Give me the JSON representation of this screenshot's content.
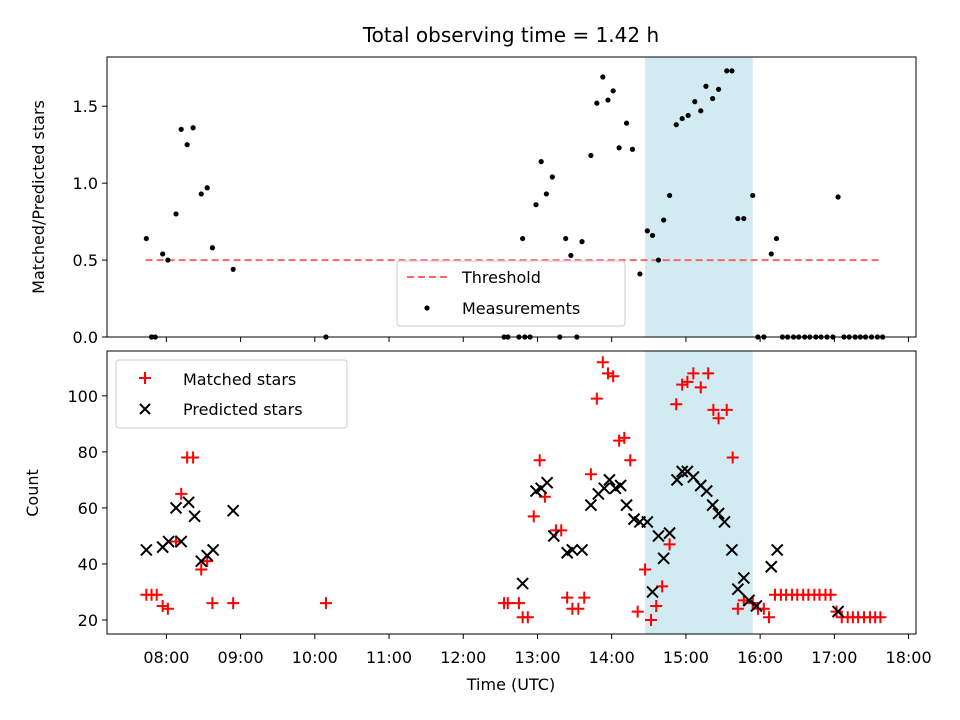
{
  "figure": {
    "title": "Total observing time = 1.42 h",
    "xlabel": "Time (UTC)",
    "x_ticks": [
      {
        "label": "08:00",
        "hour": 8
      },
      {
        "label": "09:00",
        "hour": 9
      },
      {
        "label": "10:00",
        "hour": 10
      },
      {
        "label": "11:00",
        "hour": 11
      },
      {
        "label": "12:00",
        "hour": 12
      },
      {
        "label": "13:00",
        "hour": 13
      },
      {
        "label": "14:00",
        "hour": 14
      },
      {
        "label": "15:00",
        "hour": 15
      },
      {
        "label": "16:00",
        "hour": 16
      },
      {
        "label": "17:00",
        "hour": 17
      },
      {
        "label": "18:00",
        "hour": 18
      }
    ]
  },
  "chart_data": [
    {
      "type": "scatter",
      "panel": "top",
      "ylabel": "Matched/Predicted stars",
      "xlim": [
        7.2,
        18.1
      ],
      "ylim": [
        0,
        1.82
      ],
      "y_ticks": [
        "0.0",
        "0.5",
        "1.0",
        "1.5"
      ],
      "y_tick_values": [
        0,
        0.5,
        1.0,
        1.5
      ],
      "highlight_span": {
        "x": [
          14.45,
          15.9
        ],
        "color": "#add8e6"
      },
      "legend": {
        "position": "lower center",
        "entries": [
          "Threshold",
          "Measurements"
        ]
      },
      "threshold": {
        "name": "Threshold",
        "y": 0.5,
        "x": [
          7.72,
          17.65
        ],
        "color": "#ff6666",
        "style": "dashed"
      },
      "series": [
        {
          "name": "Measurements",
          "color": "#000000",
          "marker": "dot",
          "points": [
            [
              7.73,
              0.64
            ],
            [
              7.8,
              0
            ],
            [
              7.85,
              0
            ],
            [
              7.95,
              0.54
            ],
            [
              8.02,
              0.5
            ],
            [
              8.13,
              0.8
            ],
            [
              8.2,
              1.35
            ],
            [
              8.28,
              1.25
            ],
            [
              8.36,
              1.36
            ],
            [
              8.47,
              0.93
            ],
            [
              8.55,
              0.97
            ],
            [
              8.62,
              0.58
            ],
            [
              8.9,
              0.44
            ],
            [
              10.15,
              0
            ],
            [
              12.55,
              0
            ],
            [
              12.6,
              0
            ],
            [
              12.75,
              0
            ],
            [
              12.8,
              0.64
            ],
            [
              12.83,
              0
            ],
            [
              12.9,
              0
            ],
            [
              12.98,
              0.86
            ],
            [
              13.05,
              1.14
            ],
            [
              13.12,
              0.93
            ],
            [
              13.2,
              1.04
            ],
            [
              13.3,
              0
            ],
            [
              13.38,
              0.64
            ],
            [
              13.45,
              0.53
            ],
            [
              13.53,
              0
            ],
            [
              13.6,
              0.62
            ],
            [
              13.72,
              1.18
            ],
            [
              13.8,
              1.52
            ],
            [
              13.88,
              1.69
            ],
            [
              13.95,
              1.54
            ],
            [
              14.02,
              1.6
            ],
            [
              14.1,
              1.23
            ],
            [
              14.2,
              1.39
            ],
            [
              14.28,
              1.22
            ],
            [
              14.38,
              0.41
            ],
            [
              14.48,
              0.69
            ],
            [
              14.55,
              0.66
            ],
            [
              14.63,
              0.5
            ],
            [
              14.7,
              0.76
            ],
            [
              14.78,
              0.92
            ],
            [
              14.87,
              1.38
            ],
            [
              14.95,
              1.42
            ],
            [
              15.03,
              1.44
            ],
            [
              15.12,
              1.53
            ],
            [
              15.2,
              1.47
            ],
            [
              15.27,
              1.63
            ],
            [
              15.36,
              1.55
            ],
            [
              15.44,
              1.61
            ],
            [
              15.55,
              1.73
            ],
            [
              15.62,
              1.73
            ],
            [
              15.7,
              0.77
            ],
            [
              15.78,
              0.77
            ],
            [
              15.9,
              0.92
            ],
            [
              15.97,
              0
            ],
            [
              16.05,
              0
            ],
            [
              16.15,
              0.54
            ],
            [
              16.22,
              0.64
            ],
            [
              16.3,
              0
            ],
            [
              16.37,
              0
            ],
            [
              16.45,
              0
            ],
            [
              16.52,
              0
            ],
            [
              16.6,
              0
            ],
            [
              16.67,
              0
            ],
            [
              16.75,
              0
            ],
            [
              16.82,
              0
            ],
            [
              16.9,
              0
            ],
            [
              16.98,
              0
            ],
            [
              17.05,
              0.91
            ],
            [
              17.13,
              0
            ],
            [
              17.2,
              0
            ],
            [
              17.28,
              0
            ],
            [
              17.35,
              0
            ],
            [
              17.42,
              0
            ],
            [
              17.5,
              0
            ],
            [
              17.58,
              0
            ],
            [
              17.65,
              0
            ]
          ]
        }
      ]
    },
    {
      "type": "scatter",
      "panel": "bottom",
      "ylabel": "Count",
      "xlabel": "Time (UTC)",
      "xlim": [
        7.2,
        18.1
      ],
      "ylim": [
        15,
        116
      ],
      "y_ticks": [
        "20",
        "40",
        "60",
        "80",
        "100"
      ],
      "y_tick_values": [
        20,
        40,
        60,
        80,
        100
      ],
      "highlight_span": {
        "x": [
          14.45,
          15.9
        ],
        "color": "#add8e6"
      },
      "legend": {
        "position": "upper left",
        "entries": [
          "Matched stars",
          "Predicted stars"
        ]
      },
      "series": [
        {
          "name": "Matched stars",
          "color": "#ff0000",
          "marker": "plus",
          "points": [
            [
              7.73,
              29
            ],
            [
              7.8,
              29
            ],
            [
              7.87,
              29
            ],
            [
              7.95,
              25
            ],
            [
              8.02,
              24
            ],
            [
              8.13,
              48
            ],
            [
              8.2,
              65
            ],
            [
              8.28,
              78
            ],
            [
              8.36,
              78
            ],
            [
              8.47,
              38
            ],
            [
              8.55,
              41
            ],
            [
              8.62,
              26
            ],
            [
              8.9,
              26
            ],
            [
              10.15,
              26
            ],
            [
              12.55,
              26
            ],
            [
              12.6,
              26
            ],
            [
              12.75,
              26
            ],
            [
              12.8,
              21
            ],
            [
              12.87,
              21
            ],
            [
              12.95,
              57
            ],
            [
              13.03,
              77
            ],
            [
              13.1,
              64
            ],
            [
              13.25,
              52
            ],
            [
              13.32,
              52
            ],
            [
              13.4,
              28
            ],
            [
              13.47,
              24
            ],
            [
              13.55,
              24
            ],
            [
              13.63,
              28
            ],
            [
              13.72,
              72
            ],
            [
              13.8,
              99
            ],
            [
              13.88,
              112
            ],
            [
              13.95,
              108
            ],
            [
              14.02,
              107
            ],
            [
              14.1,
              84
            ],
            [
              14.17,
              85
            ],
            [
              14.25,
              77
            ],
            [
              14.35,
              23
            ],
            [
              14.45,
              38
            ],
            [
              14.53,
              20
            ],
            [
              14.6,
              25
            ],
            [
              14.68,
              32
            ],
            [
              14.78,
              47
            ],
            [
              14.87,
              97
            ],
            [
              14.95,
              104
            ],
            [
              15.02,
              105
            ],
            [
              15.1,
              108
            ],
            [
              15.2,
              103
            ],
            [
              15.3,
              108
            ],
            [
              15.37,
              95
            ],
            [
              15.44,
              92
            ],
            [
              15.55,
              95
            ],
            [
              15.63,
              78
            ],
            [
              15.7,
              24
            ],
            [
              15.78,
              27
            ],
            [
              15.9,
              26
            ],
            [
              15.97,
              24
            ],
            [
              16.05,
              24
            ],
            [
              16.12,
              21
            ],
            [
              16.2,
              29
            ],
            [
              16.28,
              29
            ],
            [
              16.35,
              29
            ],
            [
              16.43,
              29
            ],
            [
              16.5,
              29
            ],
            [
              16.58,
              29
            ],
            [
              16.65,
              29
            ],
            [
              16.73,
              29
            ],
            [
              16.8,
              29
            ],
            [
              16.88,
              29
            ],
            [
              16.95,
              29
            ],
            [
              17.03,
              23
            ],
            [
              17.1,
              21
            ],
            [
              17.18,
              21
            ],
            [
              17.25,
              21
            ],
            [
              17.32,
              21
            ],
            [
              17.4,
              21
            ],
            [
              17.48,
              21
            ],
            [
              17.55,
              21
            ],
            [
              17.62,
              21
            ]
          ]
        },
        {
          "name": "Predicted stars",
          "color": "#000000",
          "marker": "x",
          "points": [
            [
              7.73,
              45
            ],
            [
              7.95,
              46
            ],
            [
              8.03,
              48
            ],
            [
              8.13,
              60
            ],
            [
              8.2,
              48
            ],
            [
              8.3,
              62
            ],
            [
              8.38,
              57
            ],
            [
              8.47,
              41
            ],
            [
              8.55,
              43
            ],
            [
              8.63,
              45
            ],
            [
              8.9,
              59
            ],
            [
              12.8,
              33
            ],
            [
              12.98,
              66
            ],
            [
              13.05,
              67
            ],
            [
              13.13,
              69
            ],
            [
              13.22,
              50
            ],
            [
              13.4,
              44
            ],
            [
              13.47,
              45
            ],
            [
              13.6,
              45
            ],
            [
              13.72,
              61
            ],
            [
              13.82,
              65
            ],
            [
              13.9,
              67
            ],
            [
              13.97,
              70
            ],
            [
              14.05,
              67
            ],
            [
              14.12,
              68
            ],
            [
              14.2,
              61
            ],
            [
              14.3,
              56
            ],
            [
              14.38,
              55
            ],
            [
              14.48,
              55
            ],
            [
              14.55,
              30
            ],
            [
              14.63,
              50
            ],
            [
              14.7,
              42
            ],
            [
              14.78,
              51
            ],
            [
              14.88,
              70
            ],
            [
              14.95,
              73
            ],
            [
              15.02,
              73
            ],
            [
              15.1,
              71
            ],
            [
              15.2,
              68
            ],
            [
              15.28,
              66
            ],
            [
              15.36,
              61
            ],
            [
              15.44,
              58
            ],
            [
              15.52,
              55
            ],
            [
              15.62,
              45
            ],
            [
              15.7,
              31
            ],
            [
              15.78,
              35
            ],
            [
              15.85,
              27
            ],
            [
              15.95,
              25
            ],
            [
              16.15,
              39
            ],
            [
              16.23,
              45
            ],
            [
              17.05,
              23
            ]
          ]
        }
      ]
    }
  ]
}
